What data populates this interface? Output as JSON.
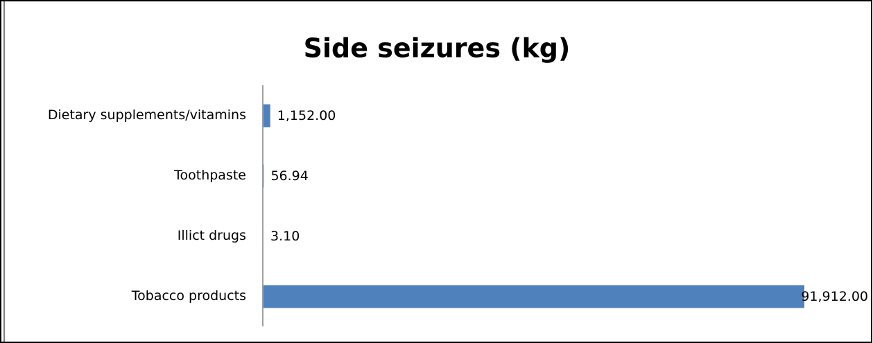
{
  "chart_data": {
    "type": "bar",
    "orientation": "horizontal",
    "title": "Side seizures (kg)",
    "categories": [
      "Dietary supplements/vitamins",
      "Toothpaste",
      "Illict drugs",
      "Tobacco products"
    ],
    "values": [
      1152,
      56.94,
      3.1,
      91912
    ],
    "value_labels": [
      "1,152.00",
      "56.94",
      "3.10",
      "91,912.00"
    ],
    "color": "#4f81bd"
  }
}
